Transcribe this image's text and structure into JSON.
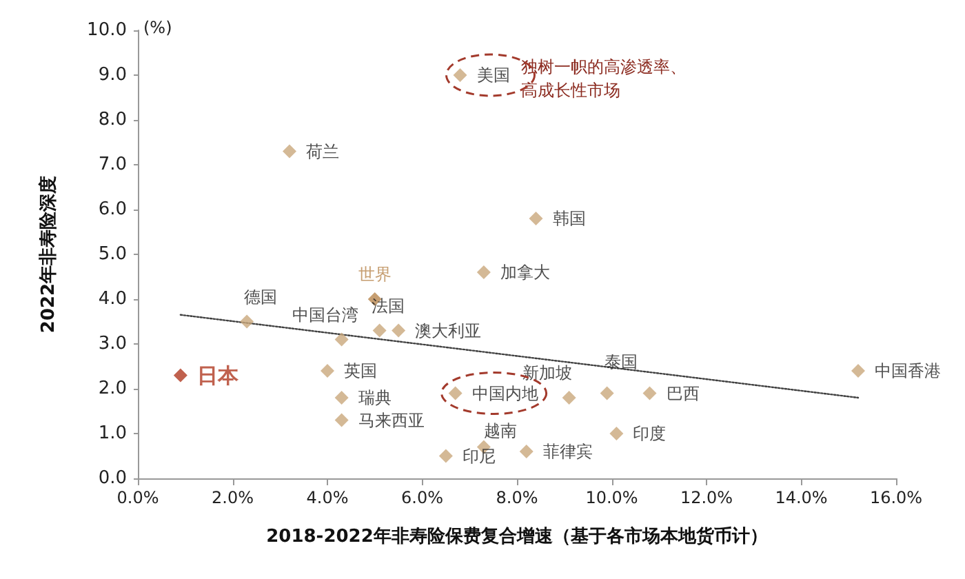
{
  "chart_data": {
    "type": "scatter",
    "xlabel": "2018-2022年非寿险保费复合增速（基于各市场本地货币计）",
    "ylabel": "2022年非寿险深度",
    "xlim": [
      0,
      16
    ],
    "xticks": [
      {
        "value": 0,
        "label": "0.0%"
      },
      {
        "value": 2,
        "label": "2.0%"
      },
      {
        "value": 4,
        "label": "4.0%"
      },
      {
        "value": 6,
        "label": "6.0%"
      },
      {
        "value": 8,
        "label": "8.0%"
      },
      {
        "value": 10,
        "label": "10.0%"
      },
      {
        "value": 12,
        "label": "12.0%"
      },
      {
        "value": 14,
        "label": "14.0%"
      },
      {
        "value": 16,
        "label": "16.0%"
      }
    ],
    "ylim": [
      0,
      10
    ],
    "yticks": [
      {
        "value": 0,
        "label": "0.0"
      },
      {
        "value": 1,
        "label": "1.0"
      },
      {
        "value": 2,
        "label": "2.0"
      },
      {
        "value": 3,
        "label": "3.0"
      },
      {
        "value": 4,
        "label": "4.0"
      },
      {
        "value": 5,
        "label": "5.0"
      },
      {
        "value": 6,
        "label": "6.0"
      },
      {
        "value": 7,
        "label": "7.0"
      },
      {
        "value": 8,
        "label": "8.0"
      },
      {
        "value": 9,
        "label": "9.0"
      },
      {
        "value": 10,
        "label": "10.0"
      }
    ],
    "grid": false,
    "series": [
      {
        "marker": "diamond",
        "color": "#c9a87c",
        "x": [
          6.8,
          3.2,
          8.4,
          7.3,
          5.0,
          2.3,
          4.3,
          5.1,
          5.5,
          0.9,
          4.0,
          4.3,
          4.3,
          6.7,
          9.1,
          9.9,
          10.8,
          10.1,
          6.5,
          7.3,
          8.2,
          15.2
        ],
        "values": [
          9.0,
          7.3,
          5.8,
          4.6,
          4.0,
          3.5,
          3.1,
          3.3,
          3.3,
          2.3,
          2.4,
          1.8,
          1.3,
          1.9,
          1.8,
          1.9,
          1.9,
          1.0,
          0.5,
          0.7,
          0.6,
          2.4
        ],
        "colors": [
          "#c9a87c",
          "#c9a87c",
          "#c9a87c",
          "#c9a87c",
          "#b8864e",
          "#c9a87c",
          "#c9a87c",
          "#c9a87c",
          "#c9a87c",
          "#b03a22",
          "#c9a87c",
          "#c9a87c",
          "#c9a87c",
          "#c9a87c",
          "#c9a87c",
          "#c9a87c",
          "#c9a87c",
          "#c9a87c",
          "#c9a87c",
          "#c9a87c",
          "#c9a87c",
          "#c9a87c"
        ],
        "value_labels": [
          "美国",
          "荷兰",
          "韩国",
          "加拿大",
          "世界",
          "德国",
          "中国台湾",
          "法国",
          "澳大利亚",
          "日本",
          "英国",
          "瑞典",
          "马来西亚",
          "中国内地",
          "新加坡",
          "泰国",
          "巴西",
          "印度",
          "印尼",
          "越南",
          "菲律宾",
          "中国香港"
        ]
      },
      {
        "type": "line",
        "marker": "none",
        "line_style": "dotted",
        "color": "#404040",
        "x": [
          0.9,
          15.2
        ],
        "values": [
          3.65,
          1.8
        ]
      }
    ],
    "annotations": [
      "独树一帜的高渗透率、高成长性市场",
      "(%)"
    ]
  }
}
